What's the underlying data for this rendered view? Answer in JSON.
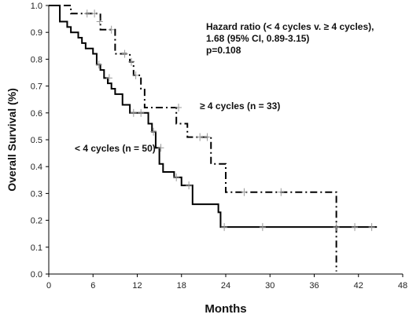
{
  "chart_data": {
    "type": "line",
    "title": "",
    "xlabel": "Months",
    "ylabel": "Overall Survival (%)",
    "xlim": [
      0,
      48
    ],
    "ylim": [
      0,
      1
    ],
    "x_ticks": [
      0,
      6,
      12,
      18,
      24,
      30,
      36,
      42,
      48
    ],
    "y_ticks": [
      0.0,
      0.1,
      0.2,
      0.3,
      0.4,
      0.5,
      0.6,
      0.7,
      0.8,
      0.9,
      1.0
    ],
    "x_tick_labels": [
      "0",
      "6",
      "12",
      "18",
      "24",
      "30",
      "36",
      "42",
      "48"
    ],
    "y_tick_labels": [
      "0.0",
      "0.1",
      "0.2",
      "0.3",
      "0.4",
      "0.5",
      "0.6",
      "0.7",
      "0.8",
      "0.9",
      "1.0"
    ],
    "series": [
      {
        "name": "≥ 4 cycles (n = 33)",
        "line_style": "dash-dot",
        "x": [
          0,
          3,
          5,
          7,
          9,
          11,
          11.5,
          12.5,
          13,
          17.3,
          18.8,
          22,
          24,
          39,
          39
        ],
        "y": [
          1.0,
          0.97,
          0.97,
          0.91,
          0.82,
          0.79,
          0.74,
          0.69,
          0.62,
          0.56,
          0.51,
          0.41,
          0.305,
          0.305,
          0.01
        ],
        "censored": [
          [
            5.2,
            0.97
          ],
          [
            6.2,
            0.97
          ],
          [
            6.9,
            0.94
          ],
          [
            8.5,
            0.91
          ],
          [
            10.3,
            0.82
          ],
          [
            11.2,
            0.79
          ],
          [
            11.8,
            0.74
          ],
          [
            17.6,
            0.62
          ],
          [
            20.5,
            0.51
          ],
          [
            21.5,
            0.51
          ],
          [
            26.5,
            0.305
          ],
          [
            31.5,
            0.305
          ]
        ]
      },
      {
        "name": "< 4 cycles (n = 50)",
        "line_style": "solid",
        "x": [
          0,
          1.5,
          2.5,
          3,
          4,
          4.5,
          5,
          6,
          6.5,
          7,
          7.5,
          8,
          8.5,
          9,
          10,
          11,
          13.5,
          14,
          14.5,
          15,
          15.5,
          17,
          18,
          19.5,
          23,
          23.3,
          44.5
        ],
        "y": [
          1.0,
          0.94,
          0.92,
          0.9,
          0.88,
          0.86,
          0.84,
          0.82,
          0.78,
          0.76,
          0.73,
          0.71,
          0.69,
          0.67,
          0.63,
          0.6,
          0.56,
          0.53,
          0.47,
          0.41,
          0.38,
          0.36,
          0.33,
          0.26,
          0.23,
          0.175,
          0.175
        ],
        "censored": [
          [
            6.8,
            0.78
          ],
          [
            8.2,
            0.73
          ],
          [
            11.5,
            0.6
          ],
          [
            12.5,
            0.6
          ],
          [
            14.2,
            0.53
          ],
          [
            15.2,
            0.47
          ],
          [
            17.3,
            0.36
          ],
          [
            19,
            0.33
          ],
          [
            23.8,
            0.175
          ],
          [
            29,
            0.175
          ],
          [
            39,
            0.175
          ],
          [
            41.5,
            0.175
          ],
          [
            43.8,
            0.175
          ]
        ]
      }
    ],
    "annotations": {
      "hazard_line1": "Hazard ratio (< 4 cycles v. ≥ 4 cycles),",
      "hazard_line2": "1.68 (95% CI, 0.89-3.15)",
      "hazard_line3": "p=0.108"
    },
    "grid": false,
    "legend": "none"
  }
}
